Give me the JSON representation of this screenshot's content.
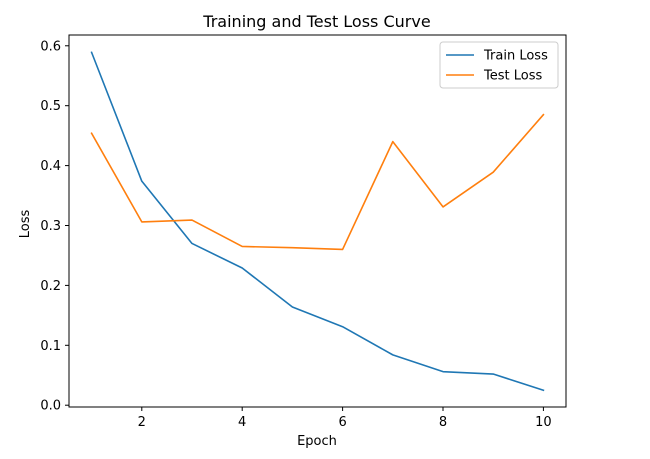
{
  "chart_data": {
    "type": "line",
    "title": "Training and Test Loss Curve",
    "xlabel": "Epoch",
    "ylabel": "Loss",
    "x": [
      1,
      2,
      3,
      4,
      5,
      6,
      7,
      8,
      9,
      10
    ],
    "xlim": [
      0.55,
      10.45
    ],
    "ylim": [
      -0.003,
      0.618
    ],
    "xticks": [
      2,
      4,
      6,
      8,
      10
    ],
    "yticks": [
      0.0,
      0.1,
      0.2,
      0.3,
      0.4,
      0.5,
      0.6
    ],
    "ytick_labels": [
      "0.0",
      "0.1",
      "0.2",
      "0.3",
      "0.4",
      "0.5",
      "0.6"
    ],
    "grid": false,
    "legend_position": "top-right",
    "series": [
      {
        "name": "Train Loss",
        "color": "#1f77b4",
        "values": [
          0.589,
          0.374,
          0.27,
          0.229,
          0.164,
          0.131,
          0.084,
          0.056,
          0.052,
          0.025
        ]
      },
      {
        "name": "Test Loss",
        "color": "#ff7f0e",
        "values": [
          0.454,
          0.306,
          0.309,
          0.265,
          0.263,
          0.26,
          0.44,
          0.331,
          0.389,
          0.485
        ]
      }
    ]
  }
}
